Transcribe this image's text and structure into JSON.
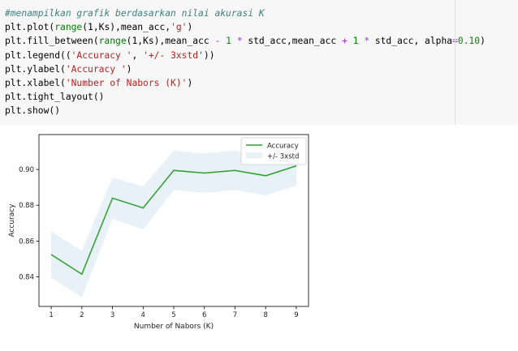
{
  "code_cell": {
    "lines": [
      [
        {
          "t": "#menampilkan grafik berdasarkan nilai akurasi K",
          "c": "c-comment"
        }
      ],
      [
        {
          "t": "plt.plot("
        },
        {
          "t": "range",
          "c": "c-builtin"
        },
        {
          "t": "(1,Ks),mean_acc,"
        },
        {
          "t": "'g'",
          "c": "c-str"
        },
        {
          "t": ")"
        }
      ],
      [
        {
          "t": "plt.fill_between("
        },
        {
          "t": "range",
          "c": "c-builtin"
        },
        {
          "t": "(1,Ks),mean_acc "
        },
        {
          "t": "-",
          "c": "c-op"
        },
        {
          "t": " "
        },
        {
          "t": "1",
          "c": "c-num"
        },
        {
          "t": " "
        },
        {
          "t": "*",
          "c": "c-op"
        },
        {
          "t": " std_acc,mean_acc "
        },
        {
          "t": "+",
          "c": "c-op"
        },
        {
          "t": " "
        },
        {
          "t": "1",
          "c": "c-num"
        },
        {
          "t": " "
        },
        {
          "t": "*",
          "c": "c-op"
        },
        {
          "t": " std_acc, alpha"
        },
        {
          "t": "=",
          "c": "c-op"
        },
        {
          "t": "0.10",
          "c": "c-num"
        },
        {
          "t": ")"
        }
      ],
      [
        {
          "t": "plt.legend(("
        },
        {
          "t": "'Accuracy '",
          "c": "c-str"
        },
        {
          "t": ", "
        },
        {
          "t": "'+/- 3xstd'",
          "c": "c-str"
        },
        {
          "t": "))"
        }
      ],
      [
        {
          "t": "plt.ylabel("
        },
        {
          "t": "'Accuracy '",
          "c": "c-str"
        },
        {
          "t": ")"
        }
      ],
      [
        {
          "t": "plt.xlabel("
        },
        {
          "t": "'Number of Nabors (K)'",
          "c": "c-str"
        },
        {
          "t": ")"
        }
      ],
      [
        {
          "t": "plt.tight_layout()"
        }
      ],
      [
        {
          "t": "plt.show()"
        }
      ]
    ]
  },
  "chart_data": {
    "type": "line",
    "title": "",
    "xlabel": "Number of Nabors (K)",
    "ylabel": "Accuracy",
    "x": [
      1,
      2,
      3,
      4,
      5,
      6,
      7,
      8,
      9
    ],
    "xticks": [
      "1",
      "2",
      "3",
      "4",
      "5",
      "6",
      "7",
      "8",
      "9"
    ],
    "yticks": [
      "0.84",
      "0.86",
      "0.88",
      "0.90"
    ],
    "ytick_values": [
      0.84,
      0.86,
      0.88,
      0.9
    ],
    "xlim": [
      0.6,
      9.4
    ],
    "ylim": [
      0.8235,
      0.9195
    ],
    "series": [
      {
        "name": "Accuracy",
        "color": "#2ca02c",
        "values": [
          0.8525,
          0.8415,
          0.884,
          0.8785,
          0.8995,
          0.898,
          0.8995,
          0.8965,
          0.902
        ]
      }
    ],
    "band": {
      "name": "+/- 3xstd",
      "color": "#1f77b4",
      "alpha": 0.1,
      "lower": [
        0.8395,
        0.8285,
        0.8725,
        0.8665,
        0.8885,
        0.887,
        0.8885,
        0.8855,
        0.891
      ],
      "upper": [
        0.8655,
        0.8545,
        0.8955,
        0.8905,
        0.9105,
        0.909,
        0.9105,
        0.9075,
        0.913
      ]
    },
    "legend": {
      "position": "top-right",
      "entries": [
        "Accuracy",
        "+/- 3xstd"
      ]
    },
    "grid": false
  }
}
